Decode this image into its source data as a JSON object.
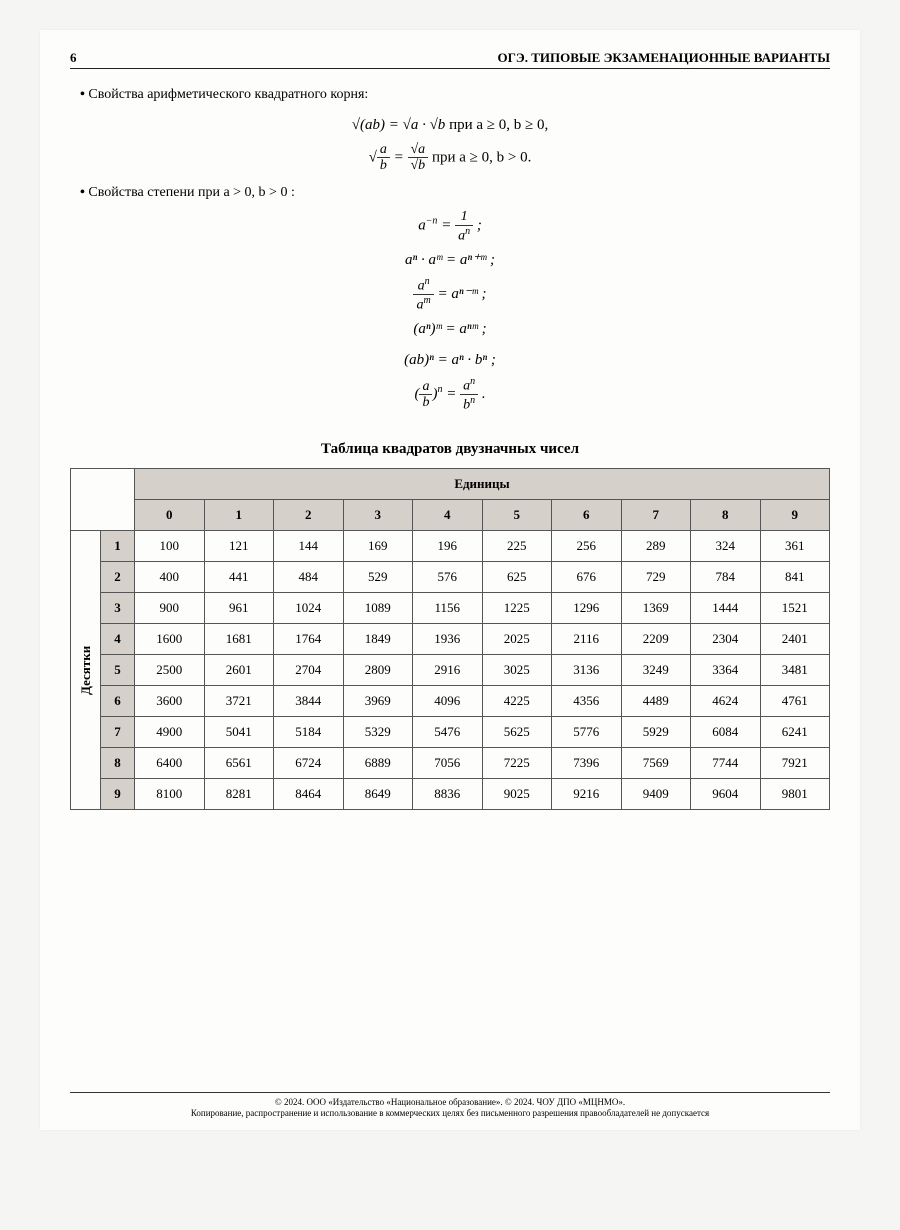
{
  "header": {
    "page_number": "6",
    "running_title": "ОГЭ. ТИПОВЫЕ ЭКЗАМЕНАЦИОННЫЕ ВАРИАНТЫ"
  },
  "section1": {
    "title": "Свойства арифметического квадратного корня:",
    "line1_left": "√(ab) = √a · √b",
    "line1_right": " при  a ≥ 0,  b ≥ 0,",
    "line2_num": "a",
    "line2_den": "b",
    "line2_rnum": "√a",
    "line2_rden": "√b",
    "line2_cond": " при  a ≥ 0,  b > 0."
  },
  "section2": {
    "title": "Свойства степени при  a > 0,  b > 0 :",
    "f1_left": "a",
    "f1_exp": "−n",
    "f1_num": "1",
    "f1_den_base": "a",
    "f1_den_exp": "n",
    "f2": "aⁿ · aᵐ = aⁿ⁺ᵐ ;",
    "f3_num_base": "a",
    "f3_num_exp": "n",
    "f3_den_base": "a",
    "f3_den_exp": "m",
    "f3_right": "aⁿ⁻ᵐ ;",
    "f4": "(aⁿ)ᵐ = aⁿᵐ ;",
    "f5": "(ab)ⁿ = aⁿ · bⁿ ;",
    "f6_lnum": "a",
    "f6_lden": "b",
    "f6_exp": "n",
    "f6_rnum_base": "a",
    "f6_rnum_exp": "n",
    "f6_rden_base": "b",
    "f6_rden_exp": "n"
  },
  "table": {
    "title": "Таблица квадратов двузначных чисел",
    "col_group_label": "Единицы",
    "row_group_label": "Десятки",
    "col_headers": [
      "0",
      "1",
      "2",
      "3",
      "4",
      "5",
      "6",
      "7",
      "8",
      "9"
    ],
    "row_headers": [
      "1",
      "2",
      "3",
      "4",
      "5",
      "6",
      "7",
      "8",
      "9"
    ],
    "rows": [
      [
        100,
        121,
        144,
        169,
        196,
        225,
        256,
        289,
        324,
        361
      ],
      [
        400,
        441,
        484,
        529,
        576,
        625,
        676,
        729,
        784,
        841
      ],
      [
        900,
        961,
        1024,
        1089,
        1156,
        1225,
        1296,
        1369,
        1444,
        1521
      ],
      [
        1600,
        1681,
        1764,
        1849,
        1936,
        2025,
        2116,
        2209,
        2304,
        2401
      ],
      [
        2500,
        2601,
        2704,
        2809,
        2916,
        3025,
        3136,
        3249,
        3364,
        3481
      ],
      [
        3600,
        3721,
        3844,
        3969,
        4096,
        4225,
        4356,
        4489,
        4624,
        4761
      ],
      [
        4900,
        5041,
        5184,
        5329,
        5476,
        5625,
        5776,
        5929,
        6084,
        6241
      ],
      [
        6400,
        6561,
        6724,
        6889,
        7056,
        7225,
        7396,
        7569,
        7744,
        7921
      ],
      [
        8100,
        8281,
        8464,
        8649,
        8836,
        9025,
        9216,
        9409,
        9604,
        9801
      ]
    ],
    "header_bg": "#d6d0cb",
    "border_color": "#555555",
    "font_size_pt": 10
  },
  "footer": {
    "line1": "© 2024. ООО «Издательство «Национальное образование». © 2024. ЧОУ ДПО «МЦНМО».",
    "line2": "Копирование, распространение и использование в коммерческих целях без письменного разрешения правообладателей не допускается"
  }
}
